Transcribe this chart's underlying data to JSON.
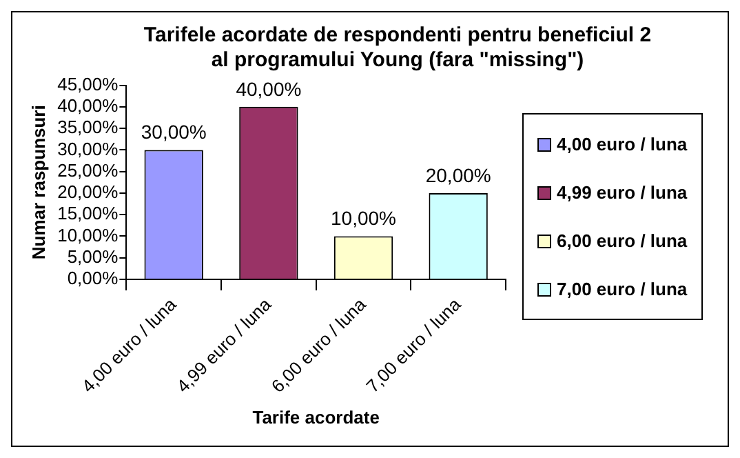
{
  "chart_data": {
    "type": "bar",
    "title": "Tarifele acordate de respondenti pentru beneficiul 2\nal programului Young (fara \"missing\")",
    "xlabel": "Tarife acordate",
    "ylabel": "Numar raspunsuri",
    "categories": [
      "4,00 euro / luna",
      "4,99 euro / luna",
      "6,00 euro / luna",
      "7,00 euro / luna"
    ],
    "values": [
      30,
      40,
      10,
      20
    ],
    "colors": [
      "#9999ff",
      "#993366",
      "#ffffcc",
      "#ccffff"
    ],
    "value_labels": [
      "30,00%",
      "40,00%",
      "10,00%",
      "20,00%"
    ],
    "ylim": [
      0,
      45
    ],
    "yticks": [
      {
        "value": 0,
        "label": "0,00%"
      },
      {
        "value": 5,
        "label": "5,00%"
      },
      {
        "value": 10,
        "label": "10,00%"
      },
      {
        "value": 15,
        "label": "15,00%"
      },
      {
        "value": 20,
        "label": "20,00%"
      },
      {
        "value": 25,
        "label": "25,00%"
      },
      {
        "value": 30,
        "label": "30,00%"
      },
      {
        "value": 35,
        "label": "35,00%"
      },
      {
        "value": 40,
        "label": "40,00%"
      },
      {
        "value": 45,
        "label": "45,00%"
      }
    ],
    "grid": false
  }
}
